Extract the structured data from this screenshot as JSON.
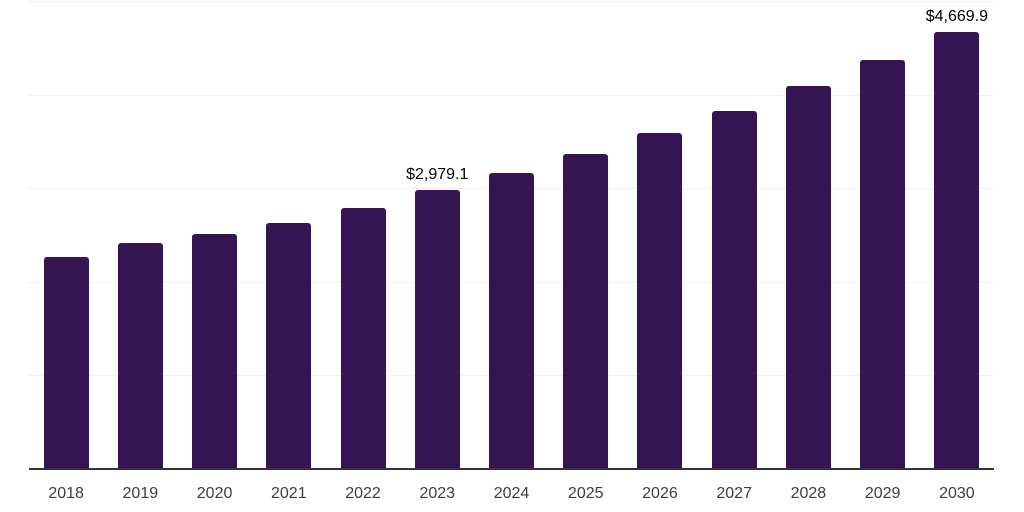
{
  "chart_data": {
    "type": "bar",
    "title": "",
    "xlabel": "",
    "ylabel": "",
    "categories": [
      "2018",
      "2019",
      "2020",
      "2021",
      "2022",
      "2023",
      "2024",
      "2025",
      "2026",
      "2027",
      "2028",
      "2029",
      "2030"
    ],
    "values": [
      2264,
      2413,
      2510,
      2627,
      2787,
      2979.1,
      3161,
      3364,
      3588,
      3823,
      4090,
      4368,
      4669.9
    ],
    "ylim": [
      0,
      5000
    ],
    "gridline_step": 1000,
    "grid": true,
    "y_tick_labels_visible": false,
    "legend": false,
    "annotations": [
      {
        "category": "2023",
        "text": "$2,979.1"
      },
      {
        "category": "2030",
        "text": "$4,669.9"
      }
    ],
    "colors": {
      "bar": "#341452",
      "axis_line": "#333333",
      "gridline": "#f1f1f1",
      "tick_label": "#3d3d3d",
      "value_label": "#000000",
      "background": "#ffffff"
    }
  }
}
